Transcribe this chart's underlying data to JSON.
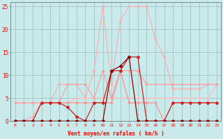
{
  "xlabel": "Vent moyen/en rafales ( km/h )",
  "x": [
    0,
    1,
    2,
    3,
    4,
    5,
    6,
    7,
    8,
    9,
    10,
    11,
    12,
    13,
    14,
    15,
    16,
    17,
    18,
    19,
    20,
    21,
    22,
    23
  ],
  "line_rafales": [
    0,
    0,
    1,
    4,
    4,
    8,
    8,
    8,
    5,
    11,
    25,
    8,
    22,
    25,
    25,
    25,
    18,
    14,
    7,
    7,
    7,
    7,
    8,
    8
  ],
  "line_moyen": [
    0,
    0,
    0,
    4,
    4,
    4,
    4,
    4,
    4,
    4,
    4,
    4,
    11,
    4,
    4,
    4,
    4,
    0,
    4,
    4,
    4,
    4,
    4,
    4
  ],
  "line_trend1": [
    4,
    4,
    4,
    4,
    4,
    4,
    8,
    8,
    8,
    5,
    11,
    5,
    11,
    11,
    11,
    8,
    8,
    8,
    8,
    8,
    8,
    8,
    8,
    8
  ],
  "line_trend2": [
    4,
    4,
    4,
    4,
    4,
    4,
    4,
    5,
    5,
    5,
    5,
    5,
    5,
    5,
    5,
    5,
    5,
    5,
    5,
    5,
    5,
    5,
    5,
    8
  ],
  "line_dark": [
    0,
    0,
    0,
    4,
    4,
    4,
    3,
    1,
    0,
    4,
    4,
    11,
    11,
    14,
    14,
    0,
    0,
    0,
    4,
    4,
    4,
    4,
    4,
    4
  ],
  "line_darkest": [
    0,
    0,
    0,
    0,
    0,
    0,
    0,
    0,
    0,
    0,
    0,
    11,
    12,
    14,
    0,
    0,
    0,
    0,
    0,
    0,
    0,
    0,
    0,
    0
  ],
  "bg_color": "#c8eaea",
  "grid_color": "#99bbbb",
  "color_light_pink": "#ffaaaa",
  "color_mid_pink": "#ff8888",
  "color_salmon": "#ff9999",
  "color_pink2": "#ffbbbb",
  "color_dark_red": "#cc2222",
  "color_darkest": "#880000",
  "ylim": [
    0,
    26
  ],
  "xlim": [
    -0.5,
    23.5
  ],
  "yticks": [
    0,
    5,
    10,
    15,
    20,
    25
  ],
  "xticks": [
    0,
    1,
    2,
    3,
    4,
    5,
    6,
    7,
    8,
    9,
    10,
    11,
    12,
    13,
    14,
    15,
    16,
    17,
    18,
    19,
    20,
    21,
    22,
    23
  ]
}
